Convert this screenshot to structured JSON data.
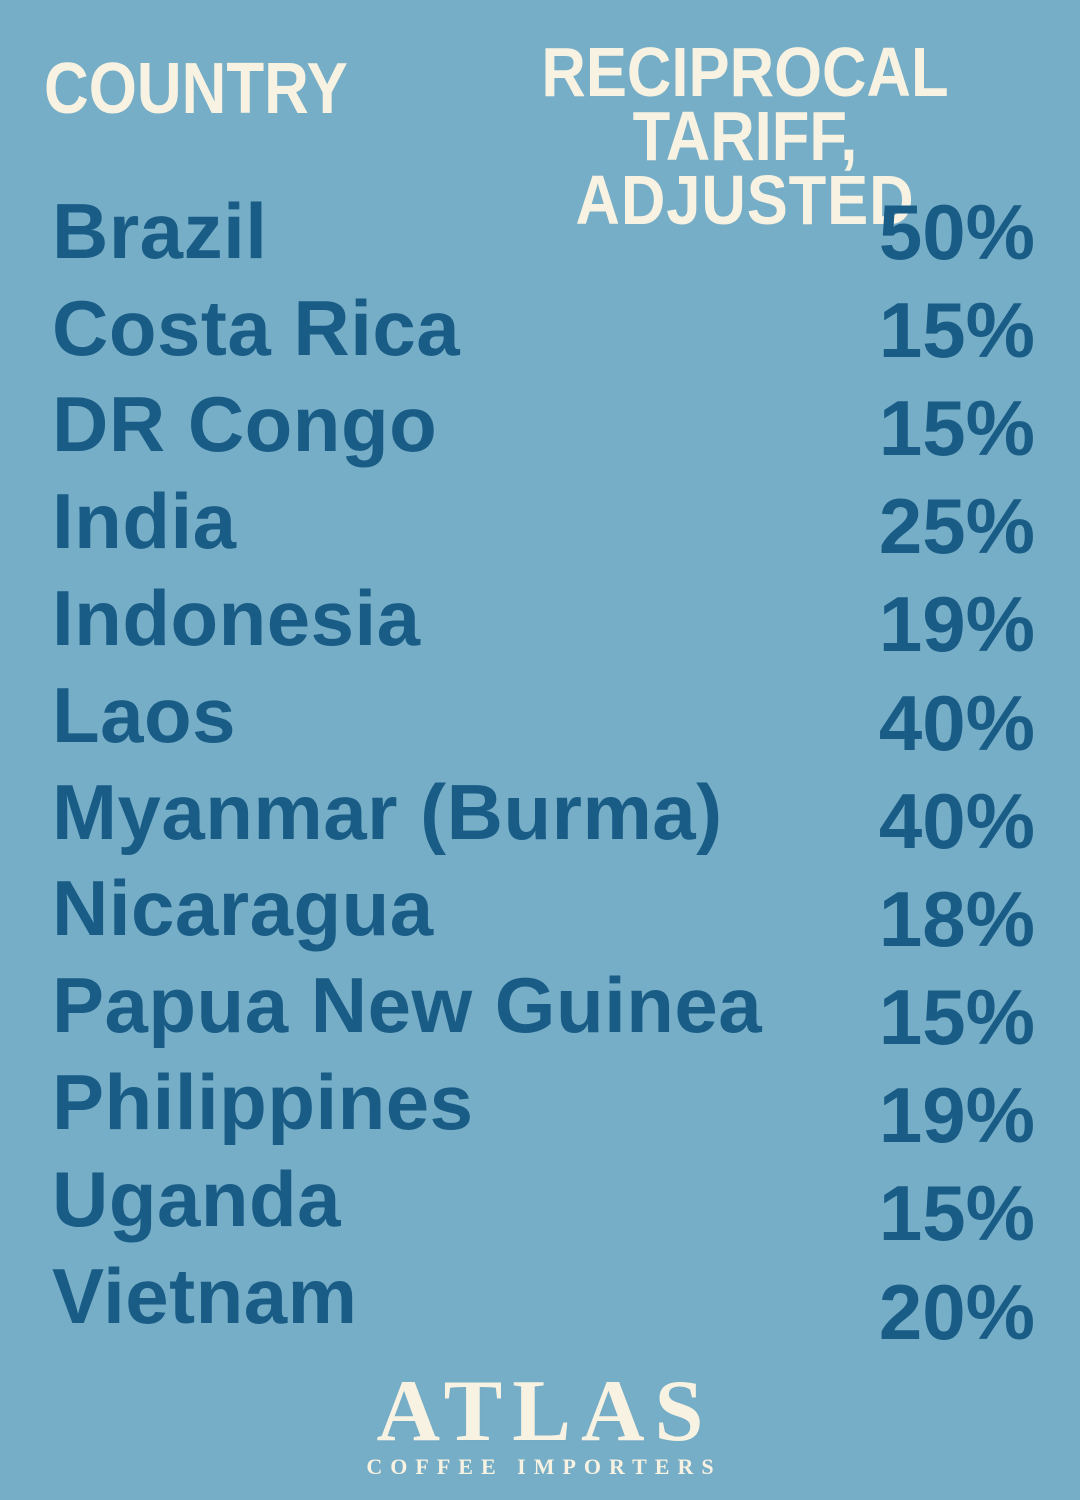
{
  "colors": {
    "background": "#76ADC7",
    "text_dark_blue": "#195C86",
    "text_cream": "#F7F2E1"
  },
  "table": {
    "country_header": "COUNTRY",
    "tariff_header_line1": "RECIPROCAL TARIFF,",
    "tariff_header_line2": "ADJUSTED",
    "rows": [
      {
        "country": "Brazil",
        "tariff": "50%"
      },
      {
        "country": "Costa Rica",
        "tariff": "15%"
      },
      {
        "country": "DR Congo",
        "tariff": "15%"
      },
      {
        "country": "India",
        "tariff": "25%"
      },
      {
        "country": "Indonesia",
        "tariff": "19%"
      },
      {
        "country": "Laos",
        "tariff": "40%"
      },
      {
        "country": "Myanmar (Burma)",
        "tariff": "40%"
      },
      {
        "country": "Nicaragua",
        "tariff": "18%"
      },
      {
        "country": "Papua New Guinea",
        "tariff": "15%"
      },
      {
        "country": "Philippines",
        "tariff": "19%"
      },
      {
        "country": "Uganda",
        "tariff": "15%"
      },
      {
        "country": "Vietnam",
        "tariff": "20%"
      }
    ]
  },
  "footer": {
    "brand": "ATLAS",
    "brand_subtitle": "COFFEE IMPORTERS"
  },
  "chart_data": {
    "type": "table",
    "title": "Reciprocal Tariff, Adjusted by Country",
    "columns": [
      "COUNTRY",
      "RECIPROCAL TARIFF, ADJUSTED"
    ],
    "categories": [
      "Brazil",
      "Costa Rica",
      "DR Congo",
      "India",
      "Indonesia",
      "Laos",
      "Myanmar (Burma)",
      "Nicaragua",
      "Papua New Guinea",
      "Philippines",
      "Uganda",
      "Vietnam"
    ],
    "values": [
      50,
      15,
      15,
      25,
      19,
      40,
      40,
      18,
      15,
      19,
      15,
      20
    ],
    "unit": "%"
  }
}
